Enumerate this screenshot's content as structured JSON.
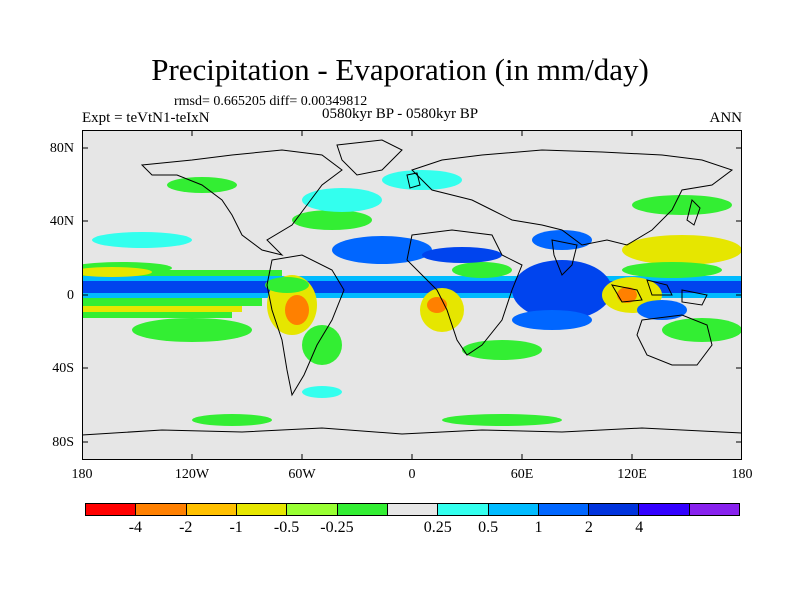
{
  "title": "Precipitation - Evaporation (in mm/day)",
  "stats": "rmsd= 0.665205 diff= 0.00349812",
  "experiment": "Expt = teVtN1-teIxN",
  "period": "0580kyr BP - 0580kyr BP",
  "season": "ANN",
  "lat_labels": [
    "80N",
    "40N",
    "0",
    "40S",
    "80S"
  ],
  "lon_labels": [
    "180",
    "120W",
    "60W",
    "0",
    "60E",
    "120E",
    "180"
  ],
  "colorbar": {
    "colors": [
      "#ff0000",
      "#ff8000",
      "#ffc000",
      "#e6e600",
      "#99ff33",
      "#33ee33",
      "#e6e6e6",
      "#33ffee",
      "#00bbff",
      "#0066ff",
      "#0033dd",
      "#3300ff",
      "#8822ee"
    ],
    "labels": [
      "-4",
      "-2",
      "-1",
      "-0.5",
      "-0.25",
      "0.25",
      "0.5",
      "1",
      "2",
      "4"
    ]
  },
  "colors": {
    "ocean_bg": "#e6e6e6",
    "land_line": "#000000"
  }
}
